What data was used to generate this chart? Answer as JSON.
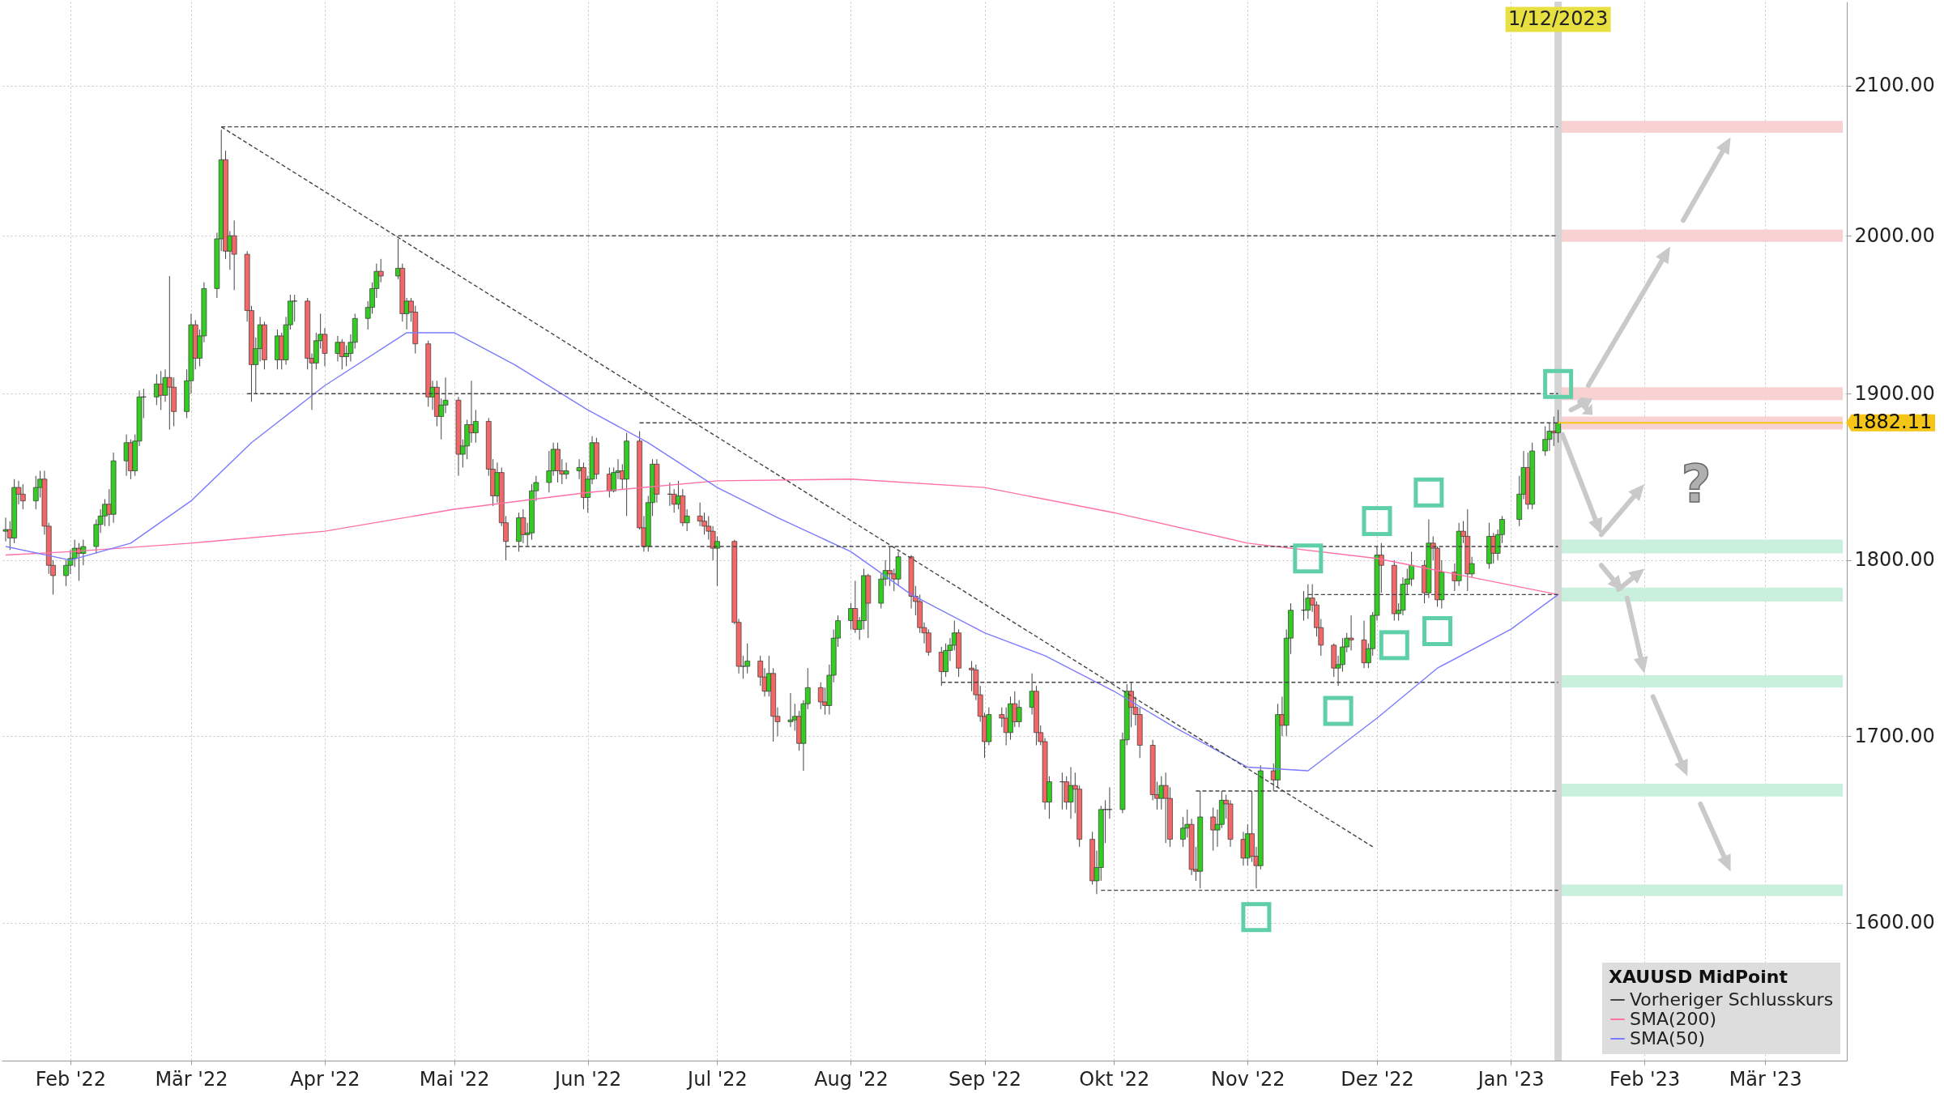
{
  "chart_data": {
    "type": "candlestick",
    "legend_title": "XAUUSD MidPoint",
    "legend": "bottom right",
    "log": true,
    "grid": true,
    "xlim": [
      "2022-01-17",
      "2023-03-19"
    ],
    "xticks": [
      {
        "value": "2022-02-01",
        "label": "Feb '22"
      },
      {
        "value": "2022-03-01",
        "label": "Mär '22"
      },
      {
        "value": "2022-04-01",
        "label": "Apr '22"
      },
      {
        "value": "2022-05-01",
        "label": "Mai '22"
      },
      {
        "value": "2022-06-01",
        "label": "Jun '22"
      },
      {
        "value": "2022-07-01",
        "label": "Jul '22"
      },
      {
        "value": "2022-08-01",
        "label": "Aug '22"
      },
      {
        "value": "2022-09-01",
        "label": "Sep '22"
      },
      {
        "value": "2022-10-01",
        "label": "Okt '22"
      },
      {
        "value": "2022-11-01",
        "label": "Nov '22"
      },
      {
        "value": "2022-12-01",
        "label": "Dez '22"
      },
      {
        "value": "2023-01-01",
        "label": "Jan '23"
      },
      {
        "value": "2023-02-01",
        "label": "Feb '23"
      },
      {
        "value": "2023-03-01",
        "label": "Mär '23"
      }
    ],
    "ylim": [
      1530,
      2158
    ],
    "yticks": [
      {
        "value": 1600,
        "label": "1600.00"
      },
      {
        "value": 1700,
        "label": "1700.00"
      },
      {
        "value": 1800,
        "label": "1800.00"
      },
      {
        "value": 1900,
        "label": "1900.00"
      },
      {
        "value": 2000,
        "label": "2000.00"
      },
      {
        "value": 2100,
        "label": "2100.00"
      }
    ],
    "annotations": [
      "?"
    ],
    "x": [
      "2022-01-17",
      "2022-01-18",
      "2022-01-19",
      "2022-01-20",
      "2022-01-21",
      "2022-01-24",
      "2022-01-25",
      "2022-01-26",
      "2022-01-27",
      "2022-01-28",
      "2022-01-31",
      "2022-02-01",
      "2022-02-02",
      "2022-02-03",
      "2022-02-04",
      "2022-02-07",
      "2022-02-08",
      "2022-02-09",
      "2022-02-10",
      "2022-02-11",
      "2022-02-14",
      "2022-02-15",
      "2022-02-16",
      "2022-02-17",
      "2022-02-18",
      "2022-02-21",
      "2022-02-22",
      "2022-02-23",
      "2022-02-24",
      "2022-02-25",
      "2022-02-28",
      "2022-03-01",
      "2022-03-02",
      "2022-03-03",
      "2022-03-04",
      "2022-03-07",
      "2022-03-08",
      "2022-03-09",
      "2022-03-10",
      "2022-03-11",
      "2022-03-14",
      "2022-03-15",
      "2022-03-16",
      "2022-03-17",
      "2022-03-18",
      "2022-03-21",
      "2022-03-22",
      "2022-03-23",
      "2022-03-24",
      "2022-03-25",
      "2022-03-28",
      "2022-03-29",
      "2022-03-30",
      "2022-03-31",
      "2022-04-01",
      "2022-04-04",
      "2022-04-05",
      "2022-04-06",
      "2022-04-07",
      "2022-04-08",
      "2022-04-11",
      "2022-04-12",
      "2022-04-13",
      "2022-04-14",
      "2022-04-18",
      "2022-04-19",
      "2022-04-20",
      "2022-04-21",
      "2022-04-22",
      "2022-04-25",
      "2022-04-26",
      "2022-04-27",
      "2022-04-28",
      "2022-04-29",
      "2022-05-02",
      "2022-05-03",
      "2022-05-04",
      "2022-05-05",
      "2022-05-06",
      "2022-05-09",
      "2022-05-10",
      "2022-05-11",
      "2022-05-12",
      "2022-05-13",
      "2022-05-16",
      "2022-05-17",
      "2022-05-18",
      "2022-05-19",
      "2022-05-20",
      "2022-05-23",
      "2022-05-24",
      "2022-05-25",
      "2022-05-26",
      "2022-05-27",
      "2022-05-30",
      "2022-05-31",
      "2022-06-01",
      "2022-06-02",
      "2022-06-03",
      "2022-06-06",
      "2022-06-07",
      "2022-06-08",
      "2022-06-09",
      "2022-06-10",
      "2022-06-13",
      "2022-06-14",
      "2022-06-15",
      "2022-06-16",
      "2022-06-17",
      "2022-06-20",
      "2022-06-21",
      "2022-06-22",
      "2022-06-23",
      "2022-06-24",
      "2022-06-27",
      "2022-06-28",
      "2022-06-29",
      "2022-06-30",
      "2022-07-01",
      "2022-07-05",
      "2022-07-06",
      "2022-07-07",
      "2022-07-08",
      "2022-07-11",
      "2022-07-12",
      "2022-07-13",
      "2022-07-14",
      "2022-07-15",
      "2022-07-18",
      "2022-07-19",
      "2022-07-20",
      "2022-07-21",
      "2022-07-22",
      "2022-07-25",
      "2022-07-26",
      "2022-07-27",
      "2022-07-28",
      "2022-07-29",
      "2022-08-01",
      "2022-08-02",
      "2022-08-03",
      "2022-08-04",
      "2022-08-05",
      "2022-08-08",
      "2022-08-09",
      "2022-08-10",
      "2022-08-11",
      "2022-08-12",
      "2022-08-15",
      "2022-08-16",
      "2022-08-17",
      "2022-08-18",
      "2022-08-19",
      "2022-08-22",
      "2022-08-23",
      "2022-08-24",
      "2022-08-25",
      "2022-08-26",
      "2022-08-29",
      "2022-08-30",
      "2022-08-31",
      "2022-09-01",
      "2022-09-02",
      "2022-09-05",
      "2022-09-06",
      "2022-09-07",
      "2022-09-08",
      "2022-09-09",
      "2022-09-12",
      "2022-09-13",
      "2022-09-14",
      "2022-09-15",
      "2022-09-16",
      "2022-09-19",
      "2022-09-20",
      "2022-09-21",
      "2022-09-22",
      "2022-09-23",
      "2022-09-26",
      "2022-09-27",
      "2022-09-28",
      "2022-09-29",
      "2022-09-30",
      "2022-10-03",
      "2022-10-04",
      "2022-10-05",
      "2022-10-06",
      "2022-10-07",
      "2022-10-10",
      "2022-10-11",
      "2022-10-12",
      "2022-10-13",
      "2022-10-14",
      "2022-10-17",
      "2022-10-18",
      "2022-10-19",
      "2022-10-20",
      "2022-10-21",
      "2022-10-24",
      "2022-10-25",
      "2022-10-26",
      "2022-10-27",
      "2022-10-28",
      "2022-10-31",
      "2022-11-01",
      "2022-11-02",
      "2022-11-03",
      "2022-11-04",
      "2022-11-07",
      "2022-11-08",
      "2022-11-09",
      "2022-11-10",
      "2022-11-11",
      "2022-11-14",
      "2022-11-15",
      "2022-11-16",
      "2022-11-17",
      "2022-11-18",
      "2022-11-21",
      "2022-11-22",
      "2022-11-23",
      "2022-11-24",
      "2022-11-25",
      "2022-11-28",
      "2022-11-29",
      "2022-11-30",
      "2022-12-01",
      "2022-12-02",
      "2022-12-05",
      "2022-12-06",
      "2022-12-07",
      "2022-12-08",
      "2022-12-09",
      "2022-12-12",
      "2022-12-13",
      "2022-12-14",
      "2022-12-15",
      "2022-12-16",
      "2022-12-19",
      "2022-12-20",
      "2022-12-21",
      "2022-12-22",
      "2022-12-23",
      "2022-12-27",
      "2022-12-28",
      "2022-12-29",
      "2022-12-30",
      "2023-01-03",
      "2023-01-04",
      "2023-01-05",
      "2023-01-06",
      "2023-01-09",
      "2023-01-10",
      "2023-01-11",
      "2023-01-12"
    ],
    "ohlc": [
      [
        1817,
        1825,
        1811,
        1818
      ],
      [
        1818,
        1823,
        1806,
        1813
      ],
      [
        1813,
        1848,
        1810,
        1843
      ],
      [
        1843,
        1847,
        1833,
        1839
      ],
      [
        1839,
        1845,
        1830,
        1835
      ],
      [
        1835,
        1850,
        1830,
        1843
      ],
      [
        1843,
        1853,
        1837,
        1848
      ],
      [
        1848,
        1853,
        1815,
        1820
      ],
      [
        1820,
        1822,
        1792,
        1797
      ],
      [
        1797,
        1800,
        1780,
        1791
      ],
      [
        1791,
        1800,
        1785,
        1797
      ],
      [
        1797,
        1806,
        1792,
        1801
      ],
      [
        1801,
        1812,
        1796,
        1807
      ],
      [
        1807,
        1810,
        1788,
        1804
      ],
      [
        1804,
        1812,
        1797,
        1808
      ],
      [
        1808,
        1824,
        1804,
        1821
      ],
      [
        1821,
        1830,
        1816,
        1826
      ],
      [
        1826,
        1836,
        1820,
        1833
      ],
      [
        1833,
        1842,
        1820,
        1827
      ],
      [
        1827,
        1864,
        1822,
        1859
      ],
      [
        1859,
        1875,
        1850,
        1870
      ],
      [
        1870,
        1872,
        1848,
        1853
      ],
      [
        1853,
        1875,
        1850,
        1871
      ],
      [
        1871,
        1902,
        1868,
        1898
      ],
      [
        1898,
        1903,
        1885,
        1898
      ],
      [
        1898,
        1912,
        1893,
        1906
      ],
      [
        1906,
        1914,
        1890,
        1899
      ],
      [
        1899,
        1915,
        1895,
        1910
      ],
      [
        1910,
        1974,
        1878,
        1904
      ],
      [
        1904,
        1910,
        1880,
        1889
      ],
      [
        1889,
        1915,
        1885,
        1908
      ],
      [
        1908,
        1950,
        1900,
        1943
      ],
      [
        1943,
        1946,
        1915,
        1922
      ],
      [
        1922,
        1940,
        1917,
        1936
      ],
      [
        1936,
        1970,
        1932,
        1966
      ],
      [
        1966,
        2002,
        1960,
        1998
      ],
      [
        1998,
        2070,
        1990,
        2050
      ],
      [
        2050,
        2056,
        1985,
        1990
      ],
      [
        1990,
        2003,
        1978,
        2000
      ],
      [
        2000,
        2010,
        1965,
        1988
      ],
      [
        1988,
        1990,
        1945,
        1952
      ],
      [
        1952,
        1955,
        1895,
        1918
      ],
      [
        1918,
        1935,
        1900,
        1928
      ],
      [
        1928,
        1948,
        1920,
        1943
      ],
      [
        1943,
        1945,
        1915,
        1921
      ],
      [
        1921,
        1940,
        1915,
        1936
      ],
      [
        1936,
        1938,
        1915,
        1921
      ],
      [
        1921,
        1948,
        1918,
        1943
      ],
      [
        1943,
        1962,
        1940,
        1958
      ],
      [
        1958,
        1962,
        1945,
        1958
      ],
      [
        1958,
        1960,
        1915,
        1922
      ],
      [
        1922,
        1925,
        1890,
        1919
      ],
      [
        1919,
        1938,
        1915,
        1933
      ],
      [
        1933,
        1950,
        1928,
        1937
      ],
      [
        1937,
        1941,
        1917,
        1925
      ],
      [
        1925,
        1936,
        1920,
        1932
      ],
      [
        1932,
        1934,
        1915,
        1923
      ],
      [
        1923,
        1930,
        1917,
        1925
      ],
      [
        1925,
        1937,
        1920,
        1932
      ],
      [
        1932,
        1950,
        1928,
        1947
      ],
      [
        1947,
        1958,
        1940,
        1954
      ],
      [
        1954,
        1970,
        1950,
        1966
      ],
      [
        1966,
        1982,
        1960,
        1977
      ],
      [
        1977,
        1985,
        1970,
        1974
      ],
      [
        1974,
        1998,
        1972,
        1979
      ],
      [
        1979,
        1982,
        1945,
        1950
      ],
      [
        1950,
        1960,
        1940,
        1958
      ],
      [
        1958,
        1960,
        1945,
        1951
      ],
      [
        1951,
        1955,
        1925,
        1931
      ],
      [
        1931,
        1933,
        1892,
        1898
      ],
      [
        1898,
        1908,
        1890,
        1904
      ],
      [
        1904,
        1908,
        1880,
        1886
      ],
      [
        1886,
        1897,
        1872,
        1893
      ],
      [
        1893,
        1910,
        1888,
        1896
      ],
      [
        1896,
        1898,
        1850,
        1863
      ],
      [
        1863,
        1872,
        1855,
        1868
      ],
      [
        1868,
        1884,
        1860,
        1881
      ],
      [
        1881,
        1908,
        1870,
        1876
      ],
      [
        1876,
        1890,
        1870,
        1883
      ],
      [
        1883,
        1885,
        1850,
        1854
      ],
      [
        1854,
        1860,
        1832,
        1838
      ],
      [
        1838,
        1858,
        1834,
        1852
      ],
      [
        1852,
        1855,
        1820,
        1822
      ],
      [
        1822,
        1826,
        1800,
        1811
      ],
      [
        1811,
        1828,
        1805,
        1825
      ],
      [
        1825,
        1830,
        1810,
        1815
      ],
      [
        1815,
        1822,
        1808,
        1816
      ],
      [
        1816,
        1845,
        1812,
        1841
      ],
      [
        1841,
        1850,
        1835,
        1846
      ],
      [
        1846,
        1865,
        1840,
        1853
      ],
      [
        1853,
        1870,
        1850,
        1866
      ],
      [
        1866,
        1870,
        1846,
        1853
      ],
      [
        1853,
        1860,
        1845,
        1851
      ],
      [
        1851,
        1858,
        1848,
        1853
      ],
      [
        1853,
        1860,
        1848,
        1855
      ],
      [
        1855,
        1858,
        1830,
        1837
      ],
      [
        1837,
        1850,
        1828,
        1848
      ],
      [
        1848,
        1874,
        1845,
        1870
      ],
      [
        1870,
        1873,
        1848,
        1851
      ],
      [
        1851,
        1855,
        1837,
        1841
      ],
      [
        1841,
        1855,
        1840,
        1852
      ],
      [
        1852,
        1860,
        1848,
        1853
      ],
      [
        1853,
        1857,
        1842,
        1848
      ],
      [
        1848,
        1876,
        1826,
        1871
      ],
      [
        1871,
        1877,
        1818,
        1819
      ],
      [
        1819,
        1826,
        1805,
        1808
      ],
      [
        1808,
        1838,
        1805,
        1834
      ],
      [
        1834,
        1860,
        1826,
        1857
      ],
      [
        1857,
        1860,
        1834,
        1839
      ],
      [
        1839,
        1846,
        1832,
        1839
      ],
      [
        1839,
        1842,
        1828,
        1833
      ],
      [
        1833,
        1847,
        1830,
        1838
      ],
      [
        1838,
        1842,
        1820,
        1822
      ],
      [
        1822,
        1830,
        1817,
        1826
      ],
      [
        1826,
        1834,
        1820,
        1823
      ],
      [
        1823,
        1828,
        1815,
        1820
      ],
      [
        1820,
        1826,
        1812,
        1817
      ],
      [
        1817,
        1820,
        1800,
        1807
      ],
      [
        1807,
        1814,
        1785,
        1811
      ],
      [
        1811,
        1812,
        1763,
        1764
      ],
      [
        1764,
        1766,
        1735,
        1739
      ],
      [
        1739,
        1745,
        1732,
        1739
      ],
      [
        1739,
        1752,
        1735,
        1742
      ],
      [
        1742,
        1745,
        1728,
        1733
      ],
      [
        1733,
        1738,
        1722,
        1725
      ],
      [
        1725,
        1745,
        1722,
        1735
      ],
      [
        1735,
        1738,
        1697,
        1711
      ],
      [
        1711,
        1716,
        1700,
        1708
      ],
      [
        1708,
        1724,
        1705,
        1709
      ],
      [
        1709,
        1718,
        1703,
        1711
      ],
      [
        1711,
        1714,
        1692,
        1696
      ],
      [
        1696,
        1720,
        1681,
        1718
      ],
      [
        1718,
        1738,
        1715,
        1727
      ],
      [
        1727,
        1730,
        1715,
        1719
      ],
      [
        1719,
        1727,
        1712,
        1717
      ],
      [
        1717,
        1740,
        1712,
        1734
      ],
      [
        1734,
        1760,
        1730,
        1755
      ],
      [
        1755,
        1768,
        1750,
        1765
      ],
      [
        1765,
        1775,
        1760,
        1772
      ],
      [
        1772,
        1788,
        1758,
        1760
      ],
      [
        1760,
        1767,
        1754,
        1765
      ],
      [
        1765,
        1795,
        1760,
        1791
      ],
      [
        1791,
        1792,
        1755,
        1775
      ],
      [
        1775,
        1792,
        1772,
        1789
      ],
      [
        1789,
        1800,
        1785,
        1794
      ],
      [
        1794,
        1808,
        1785,
        1792
      ],
      [
        1792,
        1795,
        1782,
        1789
      ],
      [
        1789,
        1805,
        1785,
        1802
      ],
      [
        1802,
        1803,
        1772,
        1779
      ],
      [
        1779,
        1785,
        1768,
        1776
      ],
      [
        1776,
        1780,
        1758,
        1761
      ],
      [
        1761,
        1764,
        1752,
        1758
      ],
      [
        1758,
        1760,
        1745,
        1747
      ],
      [
        1747,
        1750,
        1728,
        1736
      ],
      [
        1736,
        1752,
        1733,
        1748
      ],
      [
        1748,
        1755,
        1742,
        1751
      ],
      [
        1751,
        1765,
        1748,
        1758
      ],
      [
        1758,
        1760,
        1733,
        1738
      ],
      [
        1738,
        1742,
        1725,
        1737
      ],
      [
        1737,
        1740,
        1720,
        1723
      ],
      [
        1723,
        1728,
        1708,
        1711
      ],
      [
        1711,
        1713,
        1688,
        1697
      ],
      [
        1697,
        1716,
        1695,
        1712
      ],
      [
        1712,
        1716,
        1705,
        1710
      ],
      [
        1710,
        1716,
        1695,
        1702
      ],
      [
        1702,
        1722,
        1698,
        1718
      ],
      [
        1718,
        1725,
        1705,
        1708
      ],
      [
        1708,
        1720,
        1705,
        1716
      ],
      [
        1716,
        1735,
        1712,
        1725
      ],
      [
        1725,
        1728,
        1695,
        1702
      ],
      [
        1702,
        1706,
        1695,
        1697
      ],
      [
        1697,
        1699,
        1660,
        1664
      ],
      [
        1664,
        1678,
        1655,
        1675
      ],
      [
        1675,
        1680,
        1660,
        1675
      ],
      [
        1675,
        1678,
        1660,
        1664
      ],
      [
        1664,
        1683,
        1655,
        1673
      ],
      [
        1673,
        1680,
        1658,
        1671
      ],
      [
        1671,
        1673,
        1640,
        1644
      ],
      [
        1644,
        1648,
        1620,
        1622
      ],
      [
        1622,
        1638,
        1615,
        1629
      ],
      [
        1629,
        1662,
        1622,
        1660
      ],
      [
        1660,
        1665,
        1642,
        1660
      ],
      [
        1660,
        1672,
        1655,
        1660
      ],
      [
        1660,
        1702,
        1658,
        1698
      ],
      [
        1698,
        1729,
        1695,
        1725
      ],
      [
        1725,
        1730,
        1705,
        1716
      ],
      [
        1716,
        1722,
        1706,
        1712
      ],
      [
        1712,
        1716,
        1688,
        1695
      ],
      [
        1695,
        1698,
        1665,
        1668
      ],
      [
        1668,
        1675,
        1660,
        1666
      ],
      [
        1666,
        1678,
        1660,
        1673
      ],
      [
        1673,
        1680,
        1642,
        1666
      ],
      [
        1666,
        1672,
        1640,
        1644
      ],
      [
        1644,
        1656,
        1640,
        1650
      ],
      [
        1650,
        1660,
        1645,
        1652
      ],
      [
        1652,
        1655,
        1625,
        1628
      ],
      [
        1628,
        1640,
        1622,
        1627
      ],
      [
        1627,
        1670,
        1618,
        1656
      ],
      [
        1656,
        1661,
        1638,
        1649
      ],
      [
        1649,
        1660,
        1640,
        1652
      ],
      [
        1652,
        1670,
        1650,
        1665
      ],
      [
        1665,
        1668,
        1655,
        1663
      ],
      [
        1663,
        1665,
        1640,
        1644
      ],
      [
        1644,
        1648,
        1630,
        1634
      ],
      [
        1634,
        1652,
        1630,
        1647
      ],
      [
        1647,
        1670,
        1632,
        1635
      ],
      [
        1635,
        1640,
        1618,
        1630
      ],
      [
        1630,
        1684,
        1628,
        1681
      ],
      [
        1681,
        1685,
        1670,
        1676
      ],
      [
        1676,
        1718,
        1672,
        1712
      ],
      [
        1712,
        1722,
        1700,
        1706
      ],
      [
        1706,
        1760,
        1700,
        1755
      ],
      [
        1755,
        1775,
        1746,
        1771
      ],
      [
        1771,
        1782,
        1765,
        1771
      ],
      [
        1771,
        1786,
        1766,
        1778
      ],
      [
        1778,
        1786,
        1770,
        1774
      ],
      [
        1774,
        1776,
        1756,
        1761
      ],
      [
        1761,
        1766,
        1745,
        1751
      ],
      [
        1751,
        1752,
        1733,
        1738
      ],
      [
        1738,
        1745,
        1728,
        1740
      ],
      [
        1740,
        1755,
        1736,
        1750
      ],
      [
        1750,
        1758,
        1747,
        1755
      ],
      [
        1755,
        1768,
        1748,
        1754
      ],
      [
        1754,
        1765,
        1738,
        1741
      ],
      [
        1741,
        1752,
        1738,
        1749
      ],
      [
        1749,
        1770,
        1745,
        1768
      ],
      [
        1768,
        1808,
        1765,
        1803
      ],
      [
        1803,
        1810,
        1781,
        1797
      ],
      [
        1797,
        1800,
        1765,
        1769
      ],
      [
        1769,
        1775,
        1765,
        1771
      ],
      [
        1771,
        1790,
        1768,
        1786
      ],
      [
        1786,
        1795,
        1780,
        1789
      ],
      [
        1789,
        1805,
        1785,
        1797
      ],
      [
        1797,
        1800,
        1775,
        1781
      ],
      [
        1781,
        1824,
        1778,
        1810
      ],
      [
        1810,
        1814,
        1800,
        1807
      ],
      [
        1807,
        1808,
        1773,
        1777
      ],
      [
        1777,
        1800,
        1772,
        1793
      ],
      [
        1793,
        1798,
        1782,
        1788
      ],
      [
        1788,
        1822,
        1785,
        1817
      ],
      [
        1817,
        1823,
        1810,
        1814
      ],
      [
        1814,
        1830,
        1782,
        1792
      ],
      [
        1792,
        1802,
        1790,
        1798
      ],
      [
        1798,
        1822,
        1795,
        1814
      ],
      [
        1814,
        1816,
        1798,
        1804
      ],
      [
        1804,
        1818,
        1800,
        1815
      ],
      [
        1815,
        1826,
        1810,
        1824
      ],
      [
        1824,
        1850,
        1820,
        1839
      ],
      [
        1839,
        1865,
        1836,
        1855
      ],
      [
        1855,
        1864,
        1830,
        1833
      ],
      [
        1833,
        1870,
        1830,
        1865
      ],
      [
        1865,
        1880,
        1862,
        1872
      ],
      [
        1872,
        1882,
        1865,
        1877
      ],
      [
        1877,
        1886,
        1868,
        1876
      ],
      [
        1876,
        1890,
        1870,
        1882
      ]
    ],
    "series": [
      {
        "name": "Vorheriger Schlusskurs",
        "type": "line",
        "color": "#444444",
        "line_style": "dashed",
        "x": [
          "2022-06-13",
          "2023-01-12"
        ],
        "values": [
          1882.11,
          1882.11
        ]
      },
      {
        "name": "SMA(200)",
        "type": "line",
        "color": "#ff6fa8",
        "x": [
          "2022-01-17",
          "2022-02-01",
          "2022-03-01",
          "2022-04-01",
          "2022-05-01",
          "2022-06-01",
          "2022-07-01",
          "2022-08-01",
          "2022-09-01",
          "2022-10-01",
          "2022-11-01",
          "2022-12-01",
          "2023-01-12"
        ],
        "values": [
          1803,
          1805,
          1810,
          1817,
          1830,
          1840,
          1847,
          1848,
          1843,
          1828,
          1810,
          1801,
          1780
        ]
      },
      {
        "name": "SMA(50)",
        "type": "line",
        "color": "#7b7bff",
        "x": [
          "2022-01-17",
          "2022-02-01",
          "2022-02-15",
          "2022-03-01",
          "2022-03-15",
          "2022-04-01",
          "2022-04-20",
          "2022-05-01",
          "2022-05-15",
          "2022-06-01",
          "2022-06-15",
          "2022-07-01",
          "2022-07-15",
          "2022-08-01",
          "2022-08-15",
          "2022-09-01",
          "2022-09-15",
          "2022-10-01",
          "2022-10-15",
          "2022-11-01",
          "2022-11-15",
          "2022-12-01",
          "2022-12-15",
          "2023-01-01",
          "2023-01-12"
        ],
        "values": [
          1808,
          1800,
          1810,
          1835,
          1870,
          1905,
          1938,
          1938,
          1918,
          1890,
          1870,
          1843,
          1825,
          1805,
          1780,
          1758,
          1745,
          1725,
          1705,
          1683,
          1681,
          1710,
          1738,
          1760,
          1780
        ]
      },
      {
        "type": "line",
        "color": "#444444",
        "line_style": "dashed",
        "x": [
          "2022-03-08",
          "2022-11-30"
        ],
        "values": [
          2072,
          1640
        ]
      },
      {
        "type": "line",
        "color": "#444444",
        "line_style": "dashed",
        "x": [
          "2022-03-08",
          "2023-01-12"
        ],
        "values": [
          2072,
          2072
        ]
      },
      {
        "type": "line",
        "color": "#444444",
        "line_style": "dashed",
        "x": [
          "2022-04-18",
          "2023-01-12"
        ],
        "values": [
          2000,
          2000
        ]
      },
      {
        "type": "line",
        "color": "#444444",
        "line_style": "dashed",
        "x": [
          "2022-03-14",
          "2023-01-12"
        ],
        "values": [
          1900,
          1900
        ]
      },
      {
        "type": "line",
        "color": "#444444",
        "line_style": "dashed",
        "x": [
          "2022-05-13",
          "2023-01-12"
        ],
        "values": [
          1808,
          1808
        ]
      },
      {
        "type": "line",
        "color": "#444444",
        "line_style": "dashed",
        "x": [
          "2022-11-15",
          "2023-01-12"
        ],
        "values": [
          1780,
          1780
        ]
      },
      {
        "type": "line",
        "color": "#444444",
        "line_style": "dashed",
        "x": [
          "2022-08-22",
          "2023-01-12"
        ],
        "values": [
          1730,
          1730
        ]
      },
      {
        "type": "line",
        "color": "#444444",
        "line_style": "dashed",
        "x": [
          "2022-10-20",
          "2023-01-12"
        ],
        "values": [
          1670,
          1670
        ]
      },
      {
        "type": "line",
        "color": "#444444",
        "line_style": "dashed",
        "x": [
          "2022-09-28",
          "2023-01-12"
        ],
        "values": [
          1617,
          1617
        ]
      }
    ],
    "ref_lines": [
      {
        "axis": "x",
        "value": "2023-01-12",
        "label": "1/12/2023",
        "color": "#d4d4d4"
      },
      {
        "axis": "y",
        "value": 1882.11,
        "label": "1882.11",
        "color": "#f5c518"
      }
    ],
    "bands": [
      {
        "axis": "y",
        "from": 2068,
        "to": 2076,
        "color": "#f8d2d2"
      },
      {
        "axis": "y",
        "from": 1996,
        "to": 2004,
        "color": "#f8d2d2"
      },
      {
        "axis": "y",
        "from": 1896,
        "to": 1904,
        "color": "#f8d2d2"
      },
      {
        "axis": "y",
        "from": 1878,
        "to": 1886,
        "color": "#f8d2d2"
      },
      {
        "axis": "y",
        "from": 1804,
        "to": 1812,
        "color": "#c9f0dc"
      },
      {
        "axis": "y",
        "from": 1776,
        "to": 1784,
        "color": "#c9f0dc"
      },
      {
        "axis": "y",
        "from": 1727,
        "to": 1734,
        "color": "#c9f0dc"
      },
      {
        "axis": "y",
        "from": 1667,
        "to": 1674,
        "color": "#c9f0dc"
      },
      {
        "axis": "y",
        "from": 1614,
        "to": 1620,
        "color": "#c9f0dc"
      }
    ]
  }
}
